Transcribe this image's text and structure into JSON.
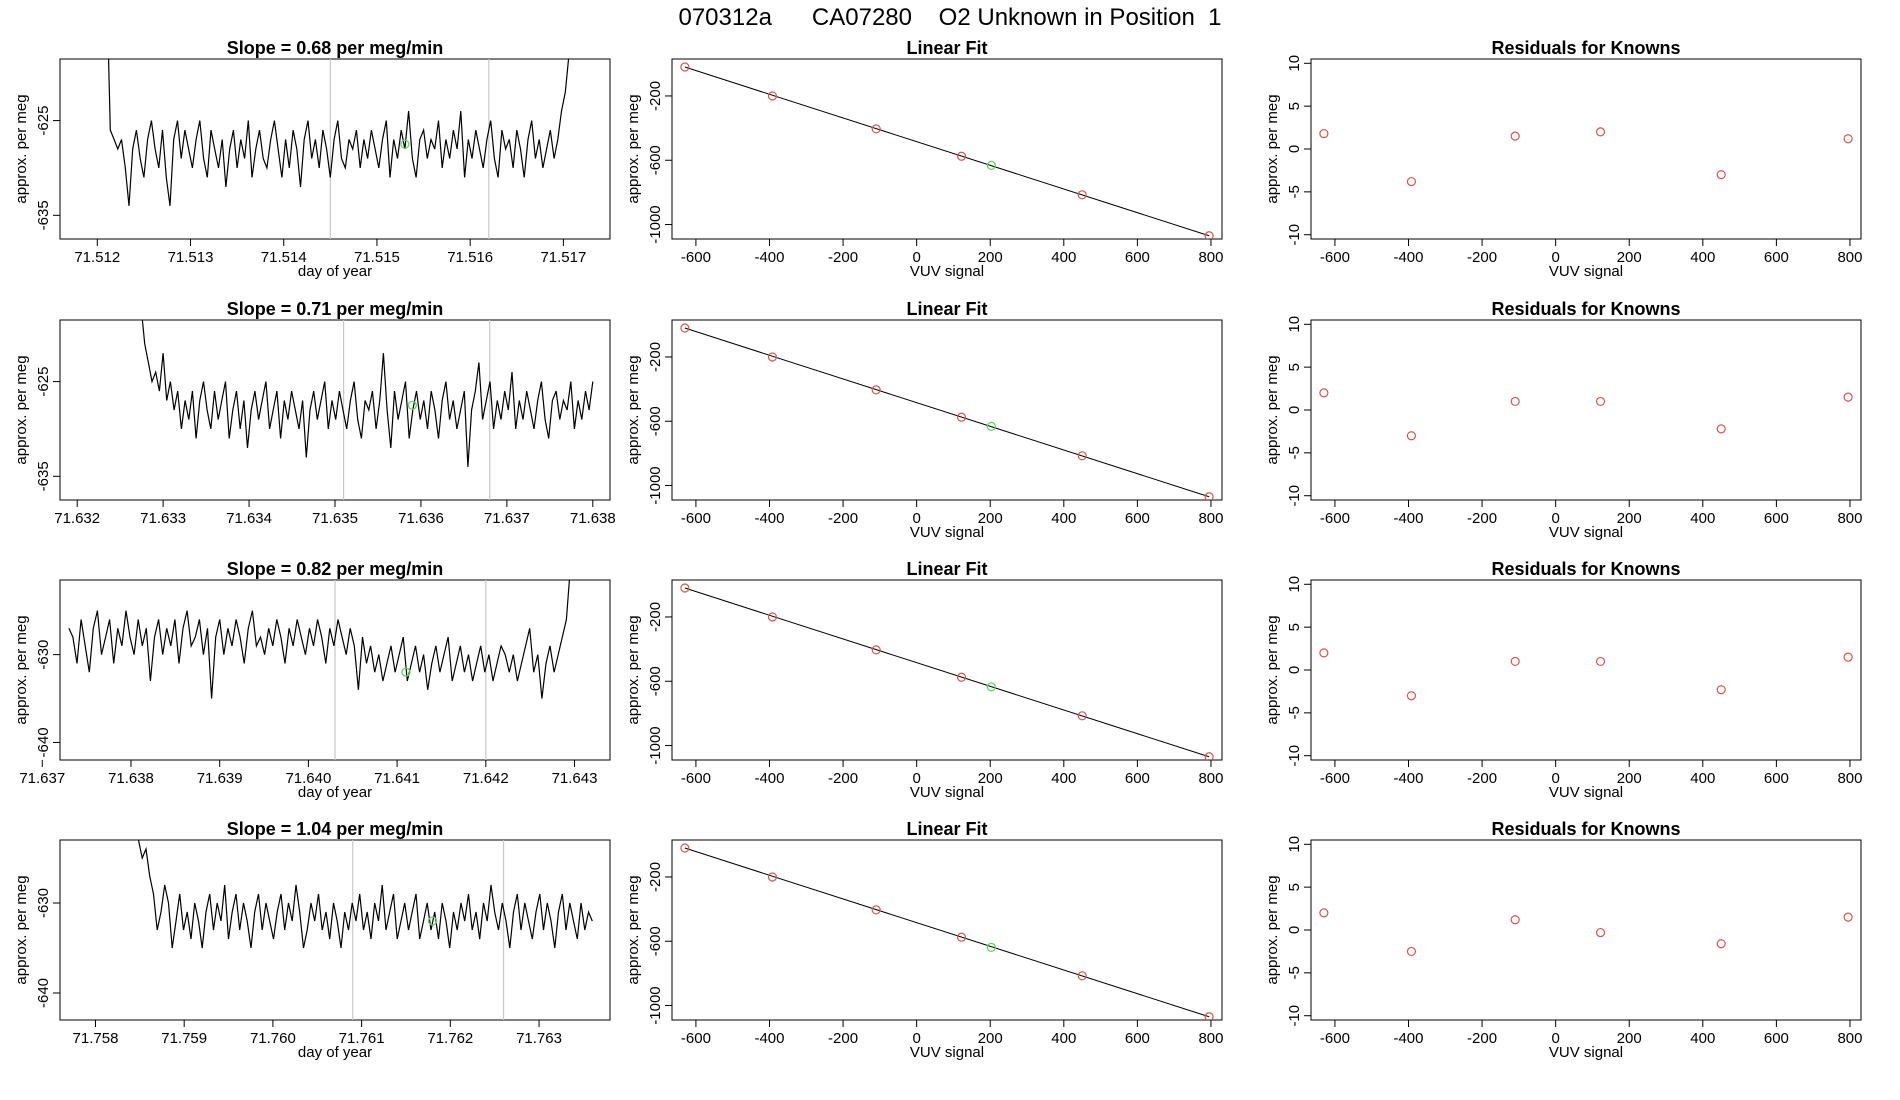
{
  "figure_title": "070312a      CA07280    O2 Unknown in Position  1",
  "colors": {
    "known_points": "#d9534f",
    "unknown_point": "#5cd65c",
    "line": "#000000",
    "marker_lines": "#c8c8c8"
  },
  "chart_data": [
    {
      "type": "line",
      "row": 1,
      "col": "timeseries",
      "title": "Slope =  0.68  per meg/min",
      "xlabel": "day of year",
      "ylabel": "approx. per meg",
      "xlim": [
        71.5116,
        71.5175
      ],
      "ylim": [
        -637.5,
        -618.5
      ],
      "xticks": [
        "71.512",
        "71.513",
        "71.514",
        "71.515",
        "71.516",
        "71.517"
      ],
      "xtick_values": [
        71.512,
        71.513,
        71.514,
        71.515,
        71.516,
        71.517
      ],
      "yticks": [
        "-625",
        "-635"
      ],
      "ytick_values": [
        -625,
        -635
      ],
      "series_x_range": [
        71.5121,
        71.5171
      ],
      "series_y": [
        -610,
        -626,
        -627,
        -628,
        -627,
        -630,
        -634,
        -628,
        -626,
        -629,
        -631,
        -627,
        -625,
        -628,
        -630,
        -626,
        -631,
        -634,
        -627,
        -625,
        -629,
        -626,
        -628,
        -630,
        -627,
        -625,
        -629,
        -631,
        -626,
        -628,
        -630,
        -627,
        -632,
        -628,
        -626,
        -630,
        -627,
        -629,
        -625,
        -631,
        -628,
        -626,
        -629,
        -630,
        -627,
        -625,
        -628,
        -631,
        -627,
        -630,
        -626,
        -628,
        -632,
        -627,
        -625,
        -629,
        -627,
        -630,
        -626,
        -628,
        -631,
        -627,
        -625,
        -629,
        -630,
        -627,
        -628,
        -626,
        -630,
        -627,
        -629,
        -626,
        -628,
        -630,
        -627,
        -625,
        -631,
        -627,
        -629,
        -626,
        -628,
        -624,
        -629,
        -631,
        -627,
        -626,
        -629,
        -627,
        -628,
        -625,
        -630,
        -627,
        -629,
        -626,
        -628,
        -624,
        -631,
        -627,
        -629,
        -626,
        -628,
        -630,
        -627,
        -625,
        -629,
        -631,
        -626,
        -628,
        -627,
        -630,
        -626,
        -628,
        -631,
        -627,
        -625,
        -629,
        -627,
        -630,
        -628,
        -626,
        -629,
        -627,
        -624,
        -622,
        -618,
        -610
      ],
      "vlines": [
        71.5145,
        71.5162
      ],
      "unknown_point": {
        "x": 71.5153,
        "y": -627.5
      }
    },
    {
      "type": "scatter",
      "row": 1,
      "col": "fit",
      "title": "Linear Fit",
      "xlabel": "VUV signal",
      "ylabel": "approx. per meg",
      "xlim": [
        -665,
        830
      ],
      "ylim": [
        -1090,
        30
      ],
      "xticks": [
        "-600",
        "-400",
        "-200",
        "0",
        "200",
        "400",
        "600",
        "800"
      ],
      "xtick_values": [
        -600,
        -400,
        -200,
        0,
        200,
        400,
        600,
        800
      ],
      "yticks": [
        "-200",
        "-600",
        "-1000"
      ],
      "ytick_values": [
        -200,
        -600,
        -1000
      ],
      "fit_line": {
        "x": [
          -630,
          795
        ],
        "y": [
          -20,
          -1070
        ]
      },
      "known_points": {
        "x": [
          -630,
          -392,
          -110,
          122,
          450,
          795
        ],
        "y": [
          -20,
          -200,
          -405,
          -575,
          -815,
          -1070
        ]
      },
      "unknown_point": {
        "x": 203,
        "y": -632
      }
    },
    {
      "type": "scatter",
      "row": 1,
      "col": "residuals",
      "title": "Residuals for Knowns",
      "xlabel": "VUV signal",
      "ylabel": "approx. per meg",
      "xlim": [
        -665,
        830
      ],
      "ylim": [
        -10.5,
        10.5
      ],
      "xticks": [
        "-600",
        "-400",
        "-200",
        "0",
        "200",
        "400",
        "600",
        "800"
      ],
      "xtick_values": [
        -600,
        -400,
        -200,
        0,
        200,
        400,
        600,
        800
      ],
      "yticks": [
        "10",
        "5",
        "0",
        "-5",
        "-10"
      ],
      "ytick_values": [
        10,
        5,
        0,
        -5,
        -10
      ],
      "x": [
        -630,
        -392,
        -110,
        122,
        450,
        795
      ],
      "y": [
        1.8,
        -3.8,
        1.5,
        2.0,
        -3.0,
        1.2
      ]
    },
    {
      "type": "line",
      "row": 2,
      "col": "timeseries",
      "title": "Slope =  0.71  per meg/min",
      "xlabel": "",
      "ylabel": "approx. per meg",
      "xlim": [
        71.6318,
        71.6382
      ],
      "ylim": [
        -637.5,
        -618.5
      ],
      "xticks": [
        "71.632",
        "71.633",
        "71.634",
        "71.635",
        "71.636",
        "71.637",
        "71.638"
      ],
      "xtick_values": [
        71.632,
        71.633,
        71.634,
        71.635,
        71.636,
        71.637,
        71.638
      ],
      "yticks": [
        "-625",
        "-635"
      ],
      "ytick_values": [
        -625,
        -635
      ],
      "series_x_range": [
        71.6327,
        71.638
      ],
      "series_y": [
        -612,
        -617,
        -621,
        -623,
        -625,
        -624,
        -626,
        -622,
        -627,
        -625,
        -628,
        -626,
        -630,
        -627,
        -629,
        -626,
        -631,
        -627,
        -625,
        -628,
        -630,
        -626,
        -629,
        -627,
        -625,
        -631,
        -628,
        -626,
        -630,
        -627,
        -632,
        -628,
        -626,
        -629,
        -627,
        -625,
        -630,
        -628,
        -626,
        -631,
        -627,
        -629,
        -626,
        -628,
        -630,
        -627,
        -633,
        -628,
        -626,
        -629,
        -627,
        -625,
        -630,
        -627,
        -629,
        -626,
        -628,
        -630,
        -627,
        -625,
        -629,
        -631,
        -627,
        -628,
        -626,
        -630,
        -627,
        -622,
        -628,
        -632,
        -626,
        -629,
        -627,
        -625,
        -631,
        -628,
        -626,
        -629,
        -627,
        -630,
        -626,
        -628,
        -631,
        -627,
        -625,
        -629,
        -627,
        -630,
        -628,
        -626,
        -634,
        -628,
        -626,
        -623,
        -629,
        -627,
        -625,
        -630,
        -627,
        -629,
        -626,
        -628,
        -624,
        -630,
        -627,
        -629,
        -626,
        -628,
        -630,
        -627,
        -625,
        -629,
        -631,
        -627,
        -626,
        -629,
        -627,
        -628,
        -625,
        -630,
        -627,
        -629,
        -626,
        -628,
        -625
      ],
      "vlines": [
        71.6351,
        71.6368
      ],
      "unknown_point": {
        "x": 71.6359,
        "y": -627.5
      }
    },
    {
      "type": "scatter",
      "row": 2,
      "col": "fit",
      "title": "Linear Fit",
      "xlabel": "VUV signal",
      "ylabel": "approx. per meg",
      "xlim": [
        -665,
        830
      ],
      "ylim": [
        -1090,
        30
      ],
      "xticks": [
        "-600",
        "-400",
        "-200",
        "0",
        "200",
        "400",
        "600",
        "800"
      ],
      "xtick_values": [
        -600,
        -400,
        -200,
        0,
        200,
        400,
        600,
        800
      ],
      "yticks": [
        "-200",
        "-600",
        "-1000"
      ],
      "ytick_values": [
        -200,
        -600,
        -1000
      ],
      "fit_line": {
        "x": [
          -630,
          795
        ],
        "y": [
          -20,
          -1070
        ]
      },
      "known_points": {
        "x": [
          -630,
          -392,
          -110,
          122,
          450,
          795
        ],
        "y": [
          -20,
          -200,
          -405,
          -575,
          -815,
          -1070
        ]
      },
      "unknown_point": {
        "x": 203,
        "y": -632
      }
    },
    {
      "type": "scatter",
      "row": 2,
      "col": "residuals",
      "title": "Residuals for Knowns",
      "xlabel": "VUV signal",
      "ylabel": "approx. per meg",
      "xlim": [
        -665,
        830
      ],
      "ylim": [
        -10.5,
        10.5
      ],
      "xticks": [
        "-600",
        "-400",
        "-200",
        "0",
        "200",
        "400",
        "600",
        "800"
      ],
      "xtick_values": [
        -600,
        -400,
        -200,
        0,
        200,
        400,
        600,
        800
      ],
      "yticks": [
        "10",
        "5",
        "0",
        "-5",
        "-10"
      ],
      "ytick_values": [
        10,
        5,
        0,
        -5,
        -10
      ],
      "x": [
        -630,
        -392,
        -110,
        122,
        450,
        795
      ],
      "y": [
        2.0,
        -3.0,
        1.0,
        1.0,
        -2.2,
        1.5
      ]
    },
    {
      "type": "line",
      "row": 3,
      "col": "timeseries",
      "title": "Slope =  0.82  per meg/min",
      "xlabel": "day of year",
      "ylabel": "approx. per meg",
      "xlim": [
        71.6372,
        71.6434
      ],
      "ylim": [
        -642,
        -621.5
      ],
      "xticks": [
        "71.637",
        "71.638",
        "71.639",
        "71.640",
        "71.641",
        "71.642",
        "71.643"
      ],
      "xtick_values": [
        71.637,
        71.638,
        71.639,
        71.64,
        71.641,
        71.642,
        71.643
      ],
      "yticks": [
        "-630",
        "-640"
      ],
      "ytick_values": [
        -630,
        -640
      ],
      "series_x_range": [
        71.6373,
        71.643
      ],
      "series_y": [
        -627,
        -628,
        -631,
        -626,
        -629,
        -632,
        -627,
        -625,
        -630,
        -628,
        -626,
        -631,
        -627,
        -629,
        -625,
        -628,
        -630,
        -626,
        -629,
        -627,
        -633,
        -628,
        -626,
        -630,
        -627,
        -629,
        -626,
        -631,
        -627,
        -625,
        -629,
        -628,
        -626,
        -630,
        -627,
        -635,
        -628,
        -626,
        -630,
        -627,
        -629,
        -626,
        -628,
        -631,
        -627,
        -625,
        -629,
        -628,
        -630,
        -627,
        -629,
        -626,
        -628,
        -631,
        -627,
        -629,
        -626,
        -628,
        -630,
        -627,
        -629,
        -626,
        -628,
        -631,
        -627,
        -629,
        -626,
        -628,
        -630,
        -627,
        -629,
        -634,
        -628,
        -631,
        -629,
        -632,
        -630,
        -633,
        -631,
        -629,
        -632,
        -630,
        -628,
        -633,
        -631,
        -629,
        -632,
        -630,
        -634,
        -631,
        -629,
        -632,
        -630,
        -628,
        -633,
        -631,
        -629,
        -632,
        -630,
        -633,
        -631,
        -629,
        -632,
        -630,
        -633,
        -631,
        -629,
        -630,
        -632,
        -630,
        -633,
        -631,
        -629,
        -627,
        -632,
        -630,
        -635,
        -631,
        -629,
        -632,
        -630,
        -628,
        -626,
        -620,
        -612
      ],
      "vlines": [
        71.6403,
        71.642
      ],
      "unknown_point": {
        "x": 71.6411,
        "y": -632
      }
    },
    {
      "type": "scatter",
      "row": 3,
      "col": "fit",
      "title": "Linear Fit",
      "xlabel": "VUV signal",
      "ylabel": "approx. per meg",
      "xlim": [
        -665,
        830
      ],
      "ylim": [
        -1090,
        30
      ],
      "xticks": [
        "-600",
        "-400",
        "-200",
        "0",
        "200",
        "400",
        "600",
        "800"
      ],
      "xtick_values": [
        -600,
        -400,
        -200,
        0,
        200,
        400,
        600,
        800
      ],
      "yticks": [
        "-200",
        "-600",
        "-1000"
      ],
      "ytick_values": [
        -200,
        -600,
        -1000
      ],
      "fit_line": {
        "x": [
          -630,
          795
        ],
        "y": [
          -20,
          -1070
        ]
      },
      "known_points": {
        "x": [
          -630,
          -392,
          -110,
          122,
          450,
          795
        ],
        "y": [
          -20,
          -200,
          -405,
          -575,
          -815,
          -1070
        ]
      },
      "unknown_point": {
        "x": 203,
        "y": -635
      }
    },
    {
      "type": "scatter",
      "row": 3,
      "col": "residuals",
      "title": "Residuals for Knowns",
      "xlabel": "VUV signal",
      "ylabel": "approx. per meg",
      "xlim": [
        -665,
        830
      ],
      "ylim": [
        -10.5,
        10.5
      ],
      "xticks": [
        "-600",
        "-400",
        "-200",
        "0",
        "200",
        "400",
        "600",
        "800"
      ],
      "xtick_values": [
        -600,
        -400,
        -200,
        0,
        200,
        400,
        600,
        800
      ],
      "yticks": [
        "10",
        "5",
        "0",
        "-5",
        "-10"
      ],
      "ytick_values": [
        10,
        5,
        0,
        -5,
        -10
      ],
      "x": [
        -630,
        -392,
        -110,
        122,
        450,
        795
      ],
      "y": [
        2.0,
        -3.0,
        1.0,
        1.0,
        -2.3,
        1.5
      ]
    },
    {
      "type": "line",
      "row": 4,
      "col": "timeseries",
      "title": "Slope =  1.04  per meg/min",
      "xlabel": "day of year",
      "ylabel": "approx. per meg",
      "xlim": [
        71.7576,
        71.7638
      ],
      "ylim": [
        -643,
        -623
      ],
      "xticks": [
        "71.758",
        "71.759",
        "71.760",
        "71.761",
        "71.762",
        "71.763"
      ],
      "xtick_values": [
        71.758,
        71.759,
        71.76,
        71.761,
        71.762,
        71.763
      ],
      "yticks": [
        "-630",
        "-640"
      ],
      "ytick_values": [
        -630,
        -640
      ],
      "series_x_range": [
        71.7584,
        71.7636
      ],
      "series_y": [
        -618,
        -621,
        -623,
        -625,
        -624,
        -627,
        -629,
        -633,
        -631,
        -628,
        -630,
        -635,
        -632,
        -629,
        -633,
        -631,
        -634,
        -630,
        -632,
        -635,
        -631,
        -629,
        -633,
        -630,
        -632,
        -628,
        -634,
        -631,
        -629,
        -633,
        -630,
        -632,
        -635,
        -631,
        -629,
        -633,
        -630,
        -632,
        -634,
        -631,
        -629,
        -633,
        -630,
        -632,
        -628,
        -631,
        -635,
        -633,
        -630,
        -632,
        -629,
        -633,
        -631,
        -634,
        -630,
        -632,
        -635,
        -631,
        -633,
        -630,
        -632,
        -629,
        -633,
        -631,
        -634,
        -630,
        -632,
        -628,
        -633,
        -631,
        -629,
        -634,
        -632,
        -630,
        -633,
        -631,
        -629,
        -634,
        -632,
        -630,
        -633,
        -631,
        -634,
        -630,
        -632,
        -635,
        -631,
        -633,
        -630,
        -632,
        -629,
        -633,
        -631,
        -634,
        -630,
        -632,
        -628,
        -631,
        -633,
        -630,
        -632,
        -635,
        -631,
        -629,
        -633,
        -630,
        -632,
        -634,
        -631,
        -629,
        -633,
        -630,
        -632,
        -635,
        -631,
        -629,
        -633,
        -630,
        -632,
        -634,
        -630,
        -633,
        -631,
        -632
      ],
      "vlines": [
        71.7609,
        71.7626
      ],
      "unknown_point": {
        "x": 71.7618,
        "y": -632
      }
    },
    {
      "type": "scatter",
      "row": 4,
      "col": "fit",
      "title": "Linear Fit",
      "xlabel": "VUV signal",
      "ylabel": "approx. per meg",
      "xlim": [
        -665,
        830
      ],
      "ylim": [
        -1090,
        30
      ],
      "xticks": [
        "-600",
        "-400",
        "-200",
        "0",
        "200",
        "400",
        "600",
        "800"
      ],
      "xtick_values": [
        -600,
        -400,
        -200,
        0,
        200,
        400,
        600,
        800
      ],
      "yticks": [
        "-200",
        "-600",
        "-1000"
      ],
      "ytick_values": [
        -200,
        -600,
        -1000
      ],
      "fit_line": {
        "x": [
          -630,
          795
        ],
        "y": [
          -20,
          -1070
        ]
      },
      "known_points": {
        "x": [
          -630,
          -392,
          -110,
          122,
          450,
          795
        ],
        "y": [
          -20,
          -200,
          -405,
          -575,
          -815,
          -1070
        ]
      },
      "unknown_point": {
        "x": 203,
        "y": -638
      }
    },
    {
      "type": "scatter",
      "row": 4,
      "col": "residuals",
      "title": "Residuals for Knowns",
      "xlabel": "VUV signal",
      "ylabel": "approx. per meg",
      "xlim": [
        -665,
        830
      ],
      "ylim": [
        -10.5,
        10.5
      ],
      "xticks": [
        "-600",
        "-400",
        "-200",
        "0",
        "200",
        "400",
        "600",
        "800"
      ],
      "xtick_values": [
        -600,
        -400,
        -200,
        0,
        200,
        400,
        600,
        800
      ],
      "yticks": [
        "10",
        "5",
        "0",
        "-5",
        "-10"
      ],
      "ytick_values": [
        10,
        5,
        0,
        -5,
        -10
      ],
      "x": [
        -630,
        -392,
        -110,
        122,
        450,
        795
      ],
      "y": [
        2.0,
        -2.5,
        1.2,
        -0.3,
        -1.6,
        1.5
      ]
    }
  ]
}
